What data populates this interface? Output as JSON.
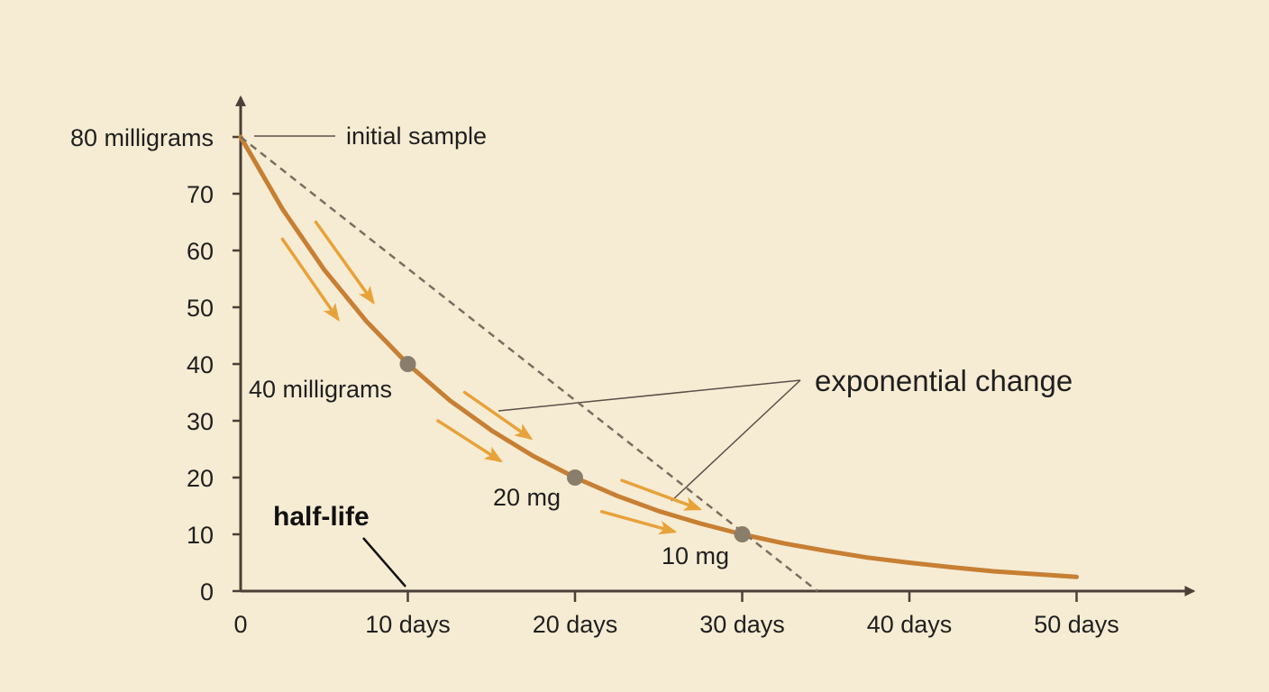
{
  "colors": {
    "background": "#f6ecd3",
    "axis": "#4a4037",
    "curve": "#c77f33",
    "arrow": "#e8a23a",
    "point": "#8a7d6b",
    "dashed": "#7a6d60",
    "leader": "#5a5048"
  },
  "chart_data": {
    "type": "line",
    "title": "",
    "xlabel": "",
    "ylabel": "",
    "xlim": [
      0,
      57
    ],
    "ylim": [
      0,
      87
    ],
    "x_ticks": [
      0,
      10,
      20,
      30,
      40,
      50
    ],
    "x_tick_labels": [
      "0",
      "10 days",
      "20 days",
      "30 days",
      "40 days",
      "50 days"
    ],
    "y_ticks": [
      0,
      10,
      20,
      30,
      40,
      50,
      60,
      70,
      80
    ],
    "y_tick_labels": [
      "0",
      "10",
      "20",
      "30",
      "40",
      "50",
      "60",
      "70",
      "80 milligrams"
    ],
    "grid": false,
    "series": [
      {
        "style": "solid",
        "x": [
          0,
          2.5,
          5,
          7.5,
          10,
          12.5,
          15,
          17.5,
          20,
          22.5,
          25,
          27.5,
          30,
          32.5,
          35,
          37.5,
          40,
          42.5,
          45,
          47.5,
          50
        ],
        "y": [
          80,
          67.3,
          56.6,
          47.6,
          40,
          33.6,
          28.3,
          23.8,
          20,
          16.8,
          14.1,
          11.9,
          10,
          8.4,
          7.1,
          5.9,
          5,
          4.2,
          3.5,
          3.0,
          2.5
        ]
      },
      {
        "style": "dashed",
        "x": [
          0,
          34.5
        ],
        "y": [
          80,
          0
        ]
      }
    ],
    "markers": [
      {
        "x": 10,
        "y": 40,
        "label": "40 milligrams"
      },
      {
        "x": 20,
        "y": 20,
        "label": "20 mg"
      },
      {
        "x": 30,
        "y": 10,
        "label": "10 mg"
      }
    ],
    "annotations": [
      {
        "text": "initial sample",
        "x": 0,
        "y": 80
      },
      {
        "text": "exponential change"
      },
      {
        "text": "half-life",
        "x": 10,
        "y": 0
      }
    ],
    "flow_arrows": [
      {
        "from": [
          2.5,
          62
        ],
        "to": [
          5.8,
          48
        ]
      },
      {
        "from": [
          4.5,
          65
        ],
        "to": [
          7.9,
          51
        ]
      },
      {
        "from": [
          11.8,
          30
        ],
        "to": [
          15.5,
          23
        ]
      },
      {
        "from": [
          13.4,
          35
        ],
        "to": [
          17.3,
          27
        ]
      },
      {
        "from": [
          21.6,
          14
        ],
        "to": [
          25.9,
          10.5
        ]
      },
      {
        "from": [
          22.8,
          19.5
        ],
        "to": [
          27.4,
          14.5
        ]
      }
    ]
  }
}
